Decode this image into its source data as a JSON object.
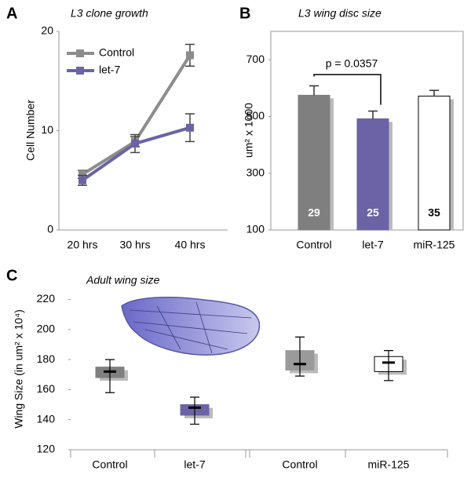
{
  "chart_data": [
    {
      "type": "line",
      "panel": "A",
      "title": "L3 clone growth",
      "ylabel": "Cell Number",
      "categories": [
        "20 hrs",
        "30 hrs",
        "40 hrs"
      ],
      "series": [
        {
          "name": "Control",
          "color": "#8c8c8c",
          "values": [
            5.6,
            8.9,
            17.6
          ],
          "errors": [
            0.4,
            0.5,
            1.1
          ]
        },
        {
          "name": "let-7",
          "color": "#6b63a6",
          "values": [
            5.0,
            8.7,
            10.3
          ],
          "errors": [
            0.5,
            0.9,
            1.4
          ]
        }
      ],
      "ylim": [
        0,
        20
      ],
      "yticks": [
        0,
        10,
        20
      ],
      "legend": "upper left"
    },
    {
      "type": "bar",
      "panel": "B",
      "title": "L3 wing disc size",
      "ylabel": "um² x 1000",
      "categories": [
        "Control",
        "let-7",
        "miR-125"
      ],
      "values": [
        575,
        492,
        572
      ],
      "errors": [
        33,
        27,
        20
      ],
      "colors": [
        "#7f7f7f",
        "#6b63a6",
        "#ffffff"
      ],
      "counts": [
        29,
        25,
        35
      ],
      "annotation": "p = 0.0357",
      "ylim": [
        100,
        800
      ],
      "yticks": [
        100,
        300,
        500,
        700
      ]
    },
    {
      "type": "box",
      "panel": "C",
      "title": "Adult wing size",
      "ylabel": "Wing Size (in um² x 10⁴)",
      "categories": [
        "Control",
        "let-7",
        "Control",
        "miR-125"
      ],
      "low": [
        158,
        137,
        169,
        166
      ],
      "q1": [
        168,
        143,
        173,
        172
      ],
      "median": [
        172,
        148,
        177,
        178
      ],
      "q3": [
        175,
        150,
        186,
        182
      ],
      "high": [
        180,
        155,
        195,
        186
      ],
      "colors": [
        "#7f7f7f",
        "#6b63a6",
        "#9a9a9a",
        "#ffffff"
      ],
      "ylim": [
        120,
        226
      ],
      "yticks": [
        120,
        140,
        160,
        180,
        200,
        220
      ]
    }
  ]
}
